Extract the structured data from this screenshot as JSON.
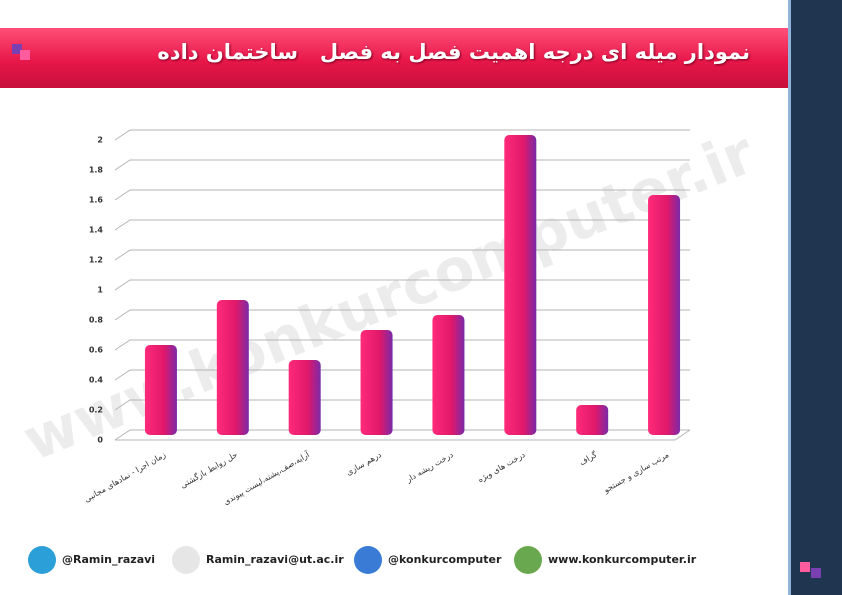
{
  "header": {
    "title": "نمودار میله ای درجه اهمیت فصل به فصل   ساختمان داده"
  },
  "watermark": "www.konkurcomputer.ir",
  "chart_data": {
    "type": "bar",
    "categories": [
      "زمان اجرا - نمادهای مجانبی",
      "حل روابط بازگشتی",
      "آرایه،صف،پشته،لیست پیوندی",
      "درهم سازی",
      "درخت ریشه دار",
      "درخت های ویژه",
      "گراف",
      "مرتب سازی و جستجو"
    ],
    "values": [
      0.6,
      0.9,
      0.5,
      0.7,
      0.8,
      2,
      0.2,
      1.6
    ],
    "color": "#e0186a",
    "ylim": [
      0,
      2
    ],
    "yticks": [
      0,
      0.2,
      0.4,
      0.6,
      0.8,
      1,
      1.2,
      1.4,
      1.6,
      1.8,
      2
    ],
    "grid": true
  },
  "footer": {
    "contacts": [
      "@Ramin_razavi",
      "Ramin_razavi@ut.ac.ir",
      "@konkurcomputer",
      "www.konkurcomputer.ir"
    ]
  }
}
